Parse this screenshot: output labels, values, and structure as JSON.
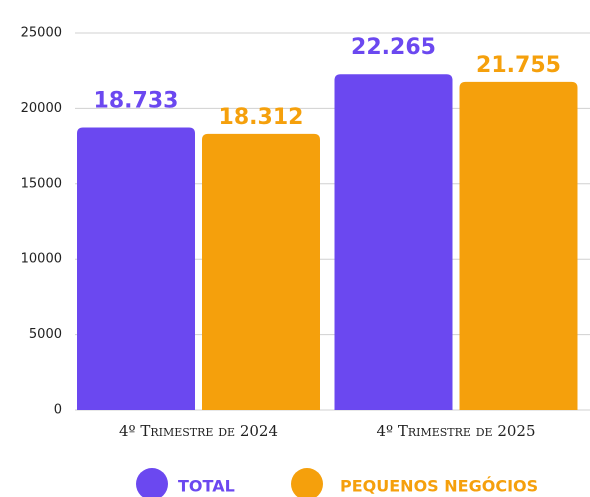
{
  "chart_data": {
    "type": "bar",
    "categories": [
      "4º Trimestre de 2024",
      "4º Trimestre de 2025"
    ],
    "series": [
      {
        "name": "TOTAL",
        "color": "#6b48f0",
        "values": [
          18733,
          22265
        ],
        "value_labels": [
          "18.733",
          "22.265"
        ]
      },
      {
        "name": "PEQUENOS NEGÓCIOS",
        "color": "#f5a00c",
        "values": [
          18312,
          21755
        ],
        "value_labels": [
          "18.312",
          "21.755"
        ]
      }
    ],
    "ylim": [
      0,
      25000
    ],
    "yticks": [
      0,
      5000,
      10000,
      15000,
      20000,
      25000
    ],
    "grid": true,
    "legend": "bottom"
  }
}
